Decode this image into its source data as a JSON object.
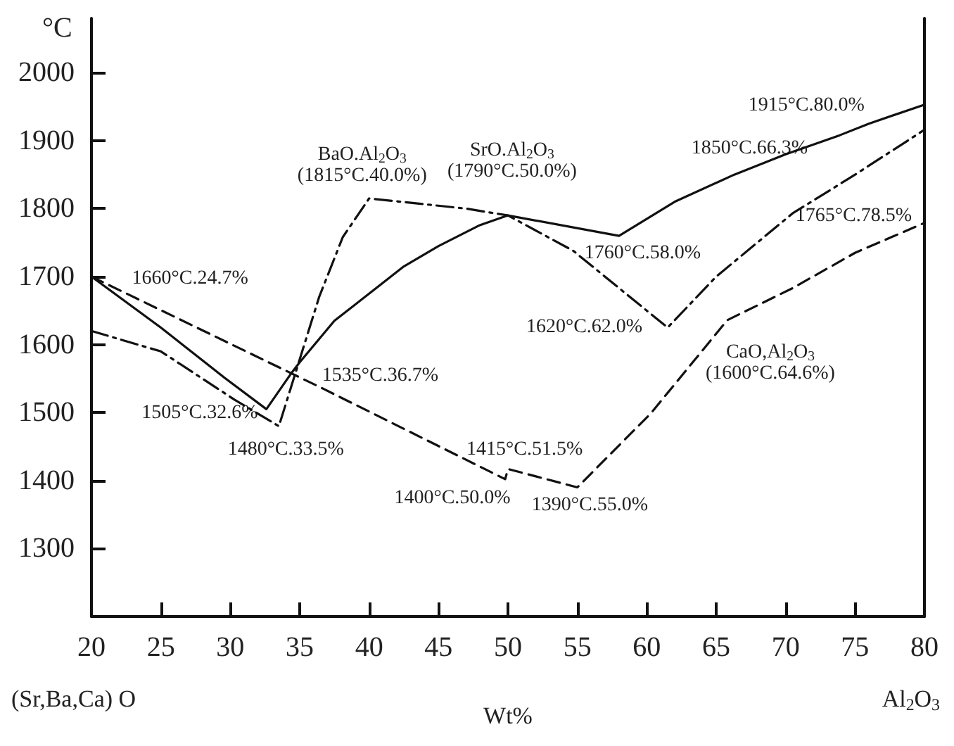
{
  "chart_data": {
    "type": "line",
    "xlabel": "Wt%",
    "ylabel": "°C",
    "xlim": [
      20,
      80
    ],
    "ylim": [
      1200,
      2080
    ],
    "xticks": [
      20,
      25,
      30,
      35,
      40,
      45,
      50,
      55,
      60,
      65,
      70,
      75,
      80
    ],
    "yticks": [
      1300,
      1400,
      1500,
      1600,
      1700,
      1800,
      1900,
      2000
    ],
    "grid": false,
    "marker": "none",
    "series": [
      {
        "color": "#111111",
        "line_style": "solid",
        "x": [
          20,
          25,
          29.6,
          32.6,
          34.4,
          35,
          37.5,
          40.5,
          42.5,
          45,
          47.9,
          50,
          58,
          62,
          66.3,
          70,
          73.9,
          76,
          80
        ],
        "values": [
          1700,
          1625,
          1551,
          1505,
          1558,
          1574,
          1635,
          1683,
          1715,
          1745,
          1775,
          1790,
          1760,
          1810,
          1850,
          1880,
          1908,
          1925,
          1953
        ]
      },
      {
        "color": "#111111",
        "line_style": "dotted",
        "x": [
          20,
          25,
          30.3,
          33.5,
          36.4,
          38.1,
          40,
          47,
          50,
          54.7,
          61.5,
          65,
          70.5,
          75,
          80
        ],
        "values": [
          1620,
          1590,
          1519,
          1480,
          1670,
          1758,
          1815,
          1800,
          1790,
          1738,
          1625,
          1700,
          1793,
          1850,
          1916
        ]
      },
      {
        "color": "#111111",
        "line_style": "dashed",
        "x": [
          20,
          36.7,
          49.8,
          50,
          55,
          60.3,
          65.8,
          70.5,
          75,
          80
        ],
        "values": [
          1700,
          1535,
          1402,
          1417,
          1390,
          1499,
          1636,
          1683,
          1735,
          1779
        ]
      }
    ],
    "annotations": [
      "1660°C.24.7%",
      "BaO.Al$_{2}$O$_{3}$\n(1815°C.40.0%)",
      "SrO.Al$_{2}$O$_{3}$\n(1790°C.50.0%)",
      "1760°C.58.0%",
      "1850°C.66.3%",
      "1915°C.80.0%",
      "1765°C.78.5%",
      "1620°C.62.0%",
      "CaO,Al$_{2}$O$_{3}$\n(1600°C.64.6%)",
      "1535°C.36.7%",
      "1505°C.32.6%",
      "1480°C.33.5%",
      "1415°C.51.5%",
      "1400°C.50.0%",
      "1390°C.55.0%",
      "(Sr,Ba,Ca) O",
      "Al$_{2}$O$_{3}$"
    ]
  }
}
